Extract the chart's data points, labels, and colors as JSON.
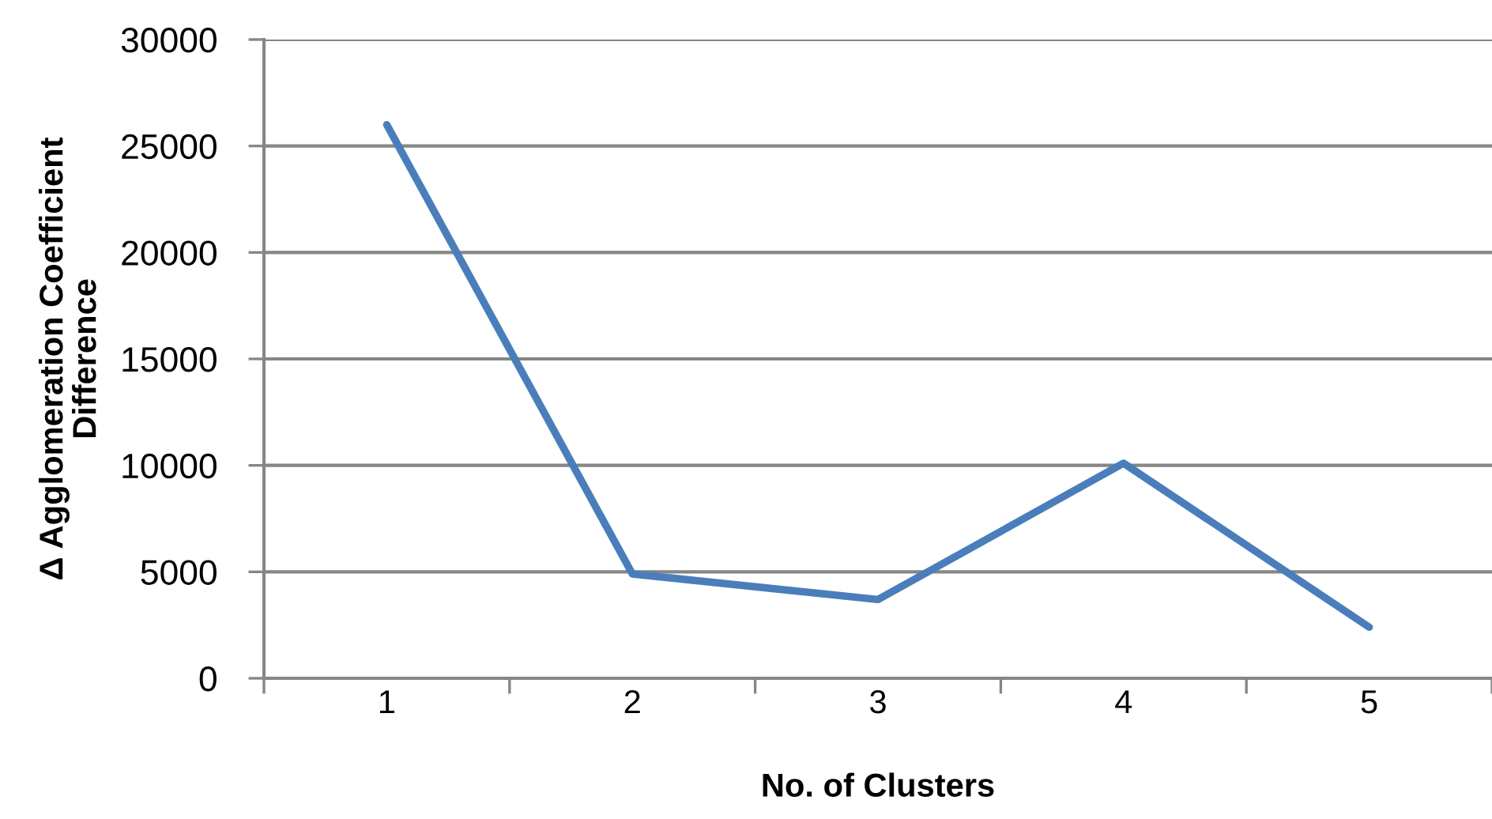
{
  "chart_data": {
    "type": "line",
    "xlabel": "No. of Clusters",
    "ylabel": "Δ Agglomeration Coefficient\nDifference",
    "categories": [
      "1",
      "2",
      "3",
      "4",
      "5"
    ],
    "series": [
      {
        "color": "#4a7ebb",
        "values": [
          26000,
          4900,
          3700,
          10100,
          2400
        ]
      }
    ],
    "ylim": [
      0,
      30000
    ],
    "yticks": [
      0,
      5000,
      10000,
      15000,
      20000,
      25000,
      30000
    ],
    "grid": "y",
    "marker": "none",
    "line_style": "solid"
  }
}
